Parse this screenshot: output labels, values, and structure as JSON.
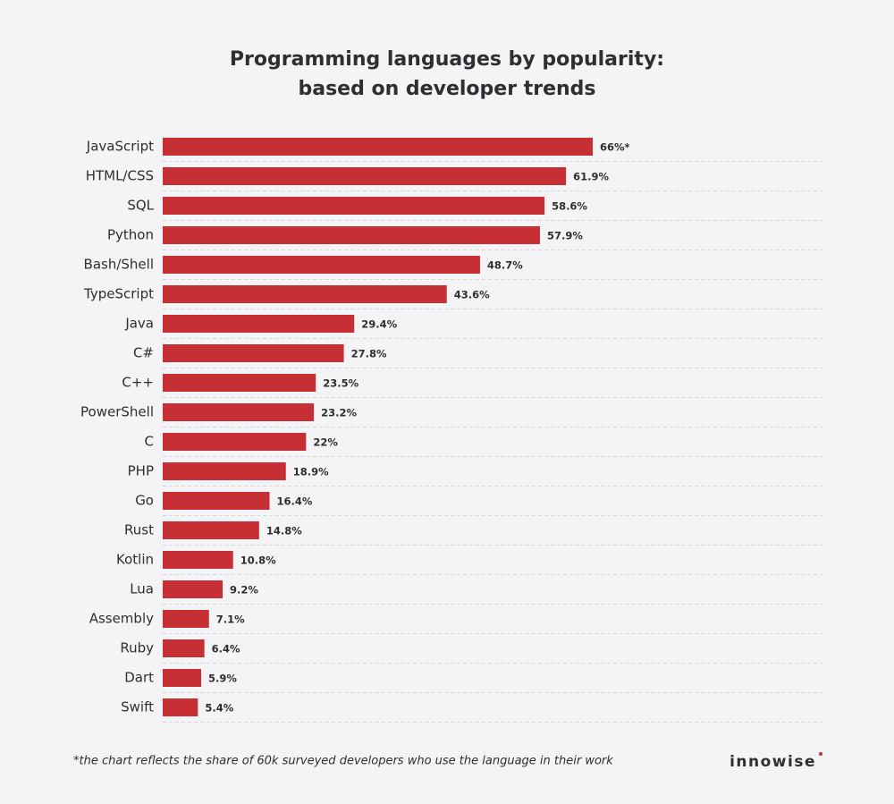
{
  "chart_data": {
    "type": "bar",
    "orientation": "horizontal",
    "title": [
      "Programming languages by popularity:",
      "based on developer trends"
    ],
    "categories": [
      "JavaScript",
      "HTML/CSS",
      "SQL",
      "Python",
      "Bash/Shell",
      "TypeScript",
      "Java",
      "C#",
      "C++",
      "PowerShell",
      "C",
      "PHP",
      "Go",
      "Rust",
      "Kotlin",
      "Lua",
      "Assembly",
      "Ruby",
      "Dart",
      "Swift"
    ],
    "values": [
      66,
      61.9,
      58.6,
      57.9,
      48.7,
      43.6,
      29.4,
      27.8,
      23.5,
      23.2,
      22,
      18.9,
      16.4,
      14.8,
      10.8,
      9.2,
      7.1,
      6.4,
      5.9,
      5.4
    ],
    "value_labels": [
      "66%*",
      "61.9%",
      "58.6%",
      "57.9%",
      "48.7%",
      "43.6%",
      "29.4%",
      "27.8%",
      "23.5%",
      "23.2%",
      "22%",
      "18.9%",
      "16.4%",
      "14.8%",
      "10.8%",
      "9.2%",
      "7.1%",
      "6.4%",
      "5.9%",
      "5.4%"
    ],
    "color": "#c62f33",
    "footnote": "*the chart reflects the share of 60k surveyed developers who use the language in their work",
    "brand": "innowise"
  }
}
